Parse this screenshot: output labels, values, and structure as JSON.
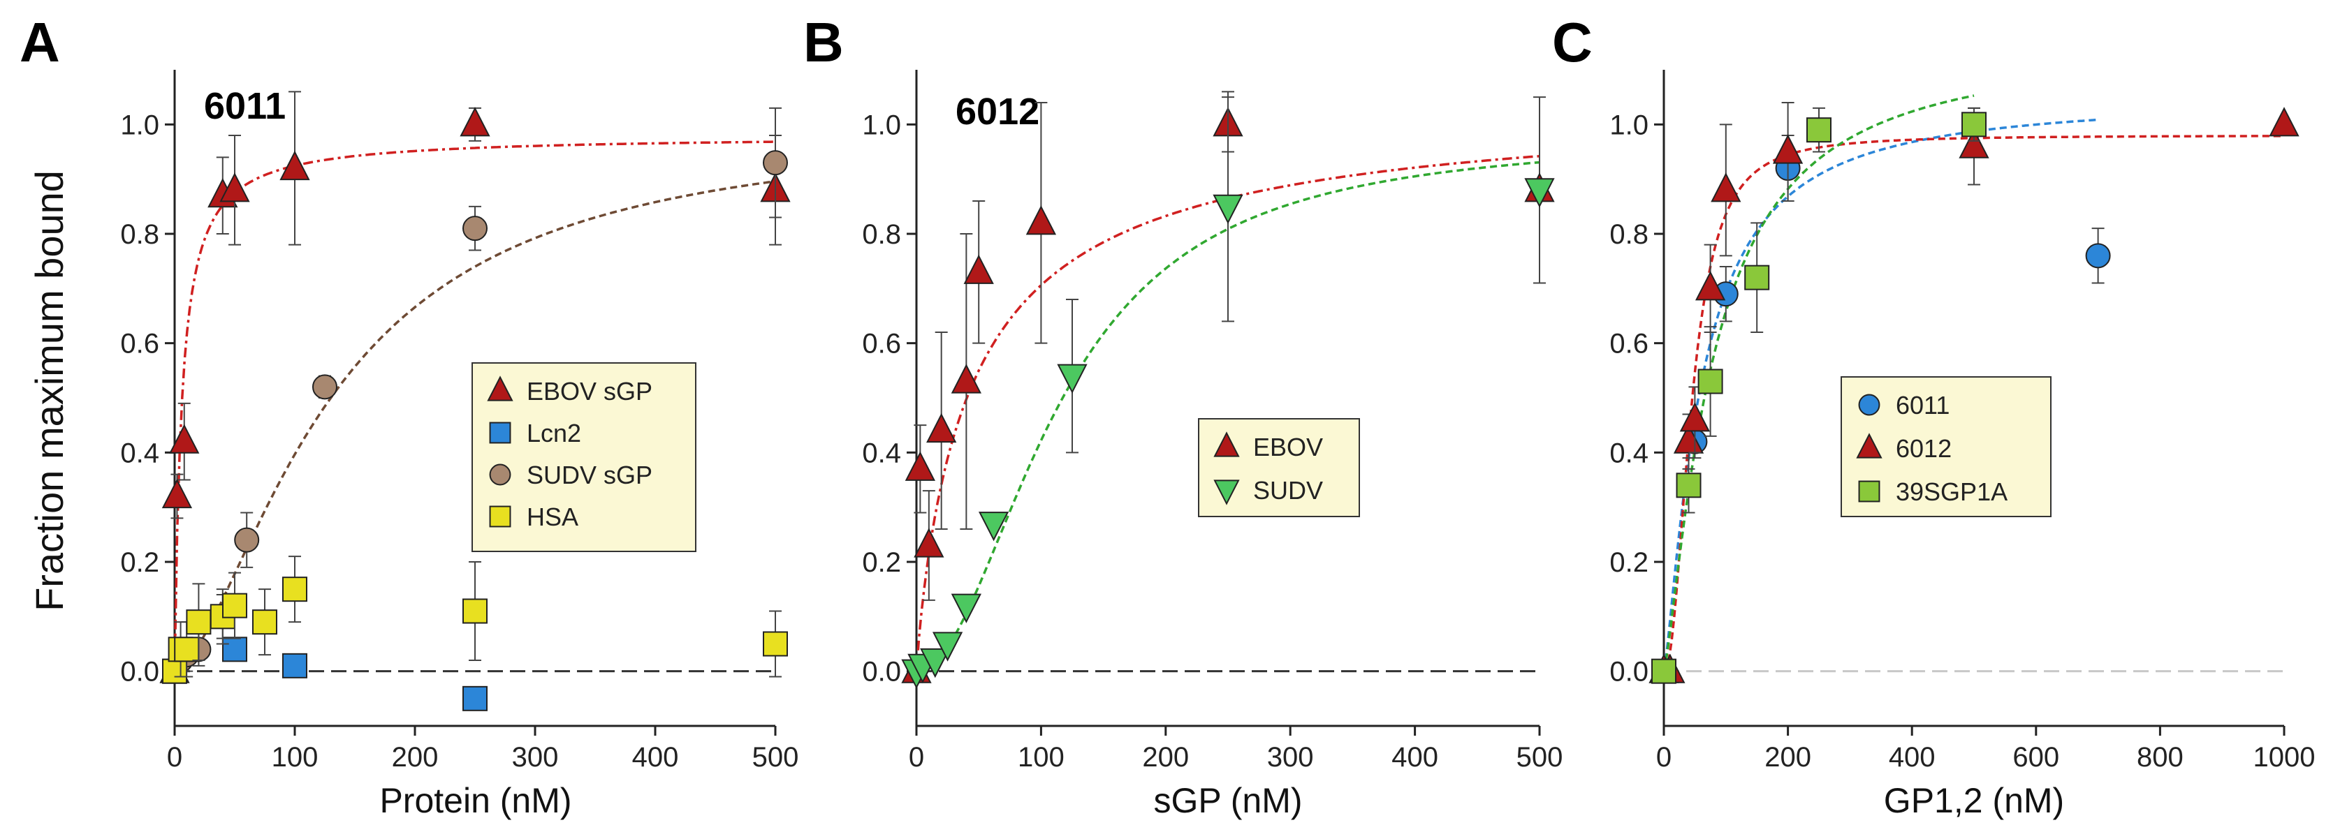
{
  "figure": {
    "y_axis_label": "Fraction maximum bound",
    "colors": {
      "red": "#b01818",
      "red_line": "#d02020",
      "brown": "#a88870",
      "brown_line": "#6e4a34",
      "blue": "#2c86d8",
      "blue_line": "#2c86d8",
      "yellow": "#e8e020",
      "green_down": "#4cc860",
      "green_line": "#30a830",
      "green_square": "#8ac83a",
      "legend_bg": "#fbf8d4"
    }
  },
  "chart_data": [
    {
      "type": "scatter",
      "panel_label": "A",
      "title": "6011",
      "xlabel": "Protein (nM)",
      "ylabel": "Fraction maximum bound",
      "xlim": [
        0,
        500
      ],
      "ylim": [
        -0.1,
        1.1
      ],
      "xticks": [
        0,
        100,
        200,
        300,
        400,
        500
      ],
      "xtick_labels": [
        "0",
        "100",
        "200",
        "300",
        "400",
        "500"
      ],
      "yticks": [
        0,
        0.2,
        0.4,
        0.6,
        0.8,
        1.0
      ],
      "ytick_labels": [
        "0.0",
        "0.2",
        "0.4",
        "0.6",
        "0.8",
        "1.0"
      ],
      "zero_line": true,
      "legend": {
        "position": "center-right",
        "entries": [
          "EBOV sGP",
          "Lcn2",
          "SUDV sGP",
          "HSA"
        ]
      },
      "fits": [
        {
          "series": "EBOV sGP",
          "model": "hill",
          "max": 0.98,
          "kd": 6,
          "n": 1,
          "color_key": "red_line",
          "dash": "14 6 4 6"
        },
        {
          "series": "SUDV sGP",
          "model": "hill",
          "max": 1.0,
          "kd": 130,
          "n": 1.6,
          "color_key": "brown_line",
          "dash": "10 6"
        }
      ],
      "series": [
        {
          "name": "EBOV sGP",
          "marker": "triangle-up",
          "color_key": "red",
          "x": [
            0,
            2,
            8,
            40,
            50,
            100,
            250,
            500
          ],
          "y": [
            0.0,
            0.32,
            0.42,
            0.87,
            0.88,
            0.92,
            1.0,
            0.88
          ],
          "err": [
            0,
            0.04,
            0.07,
            0.07,
            0.1,
            0.14,
            0.03,
            0.1
          ]
        },
        {
          "name": "Lcn2",
          "marker": "square",
          "color_key": "blue",
          "x": [
            0,
            50,
            100,
            250
          ],
          "y": [
            0.0,
            0.04,
            0.01,
            -0.05
          ],
          "err": [
            0,
            0,
            0,
            0
          ]
        },
        {
          "name": "SUDV sGP",
          "marker": "circle",
          "color_key": "brown",
          "x": [
            0,
            5,
            10,
            20,
            40,
            60,
            125,
            250,
            500
          ],
          "y": [
            0.0,
            0.02,
            0.03,
            0.04,
            0.1,
            0.24,
            0.52,
            0.81,
            0.93
          ],
          "err": [
            0,
            0.02,
            0.03,
            0.03,
            0.04,
            0.05,
            0.02,
            0.04,
            0.1
          ]
        },
        {
          "name": "HSA",
          "marker": "square",
          "color_key": "yellow",
          "x": [
            0,
            5,
            10,
            20,
            40,
            50,
            75,
            100,
            250,
            500
          ],
          "y": [
            0.0,
            0.04,
            0.04,
            0.09,
            0.1,
            0.12,
            0.09,
            0.15,
            0.11,
            0.05
          ],
          "err": [
            0.02,
            0.05,
            0.05,
            0.07,
            0.05,
            0.06,
            0.06,
            0.06,
            0.09,
            0.06
          ]
        }
      ]
    },
    {
      "type": "scatter",
      "panel_label": "B",
      "title": "6012",
      "xlabel": "sGP (nM)",
      "ylabel": "",
      "xlim": [
        0,
        500
      ],
      "ylim": [
        -0.1,
        1.1
      ],
      "xticks": [
        0,
        100,
        200,
        300,
        400,
        500
      ],
      "xtick_labels": [
        "0",
        "100",
        "200",
        "300",
        "400",
        "500"
      ],
      "yticks": [
        0,
        0.2,
        0.4,
        0.6,
        0.8,
        1.0
      ],
      "ytick_labels": [
        "0.0",
        "0.2",
        "0.4",
        "0.6",
        "0.8",
        "1.0"
      ],
      "zero_line": true,
      "legend": {
        "position": "center-right",
        "entries": [
          "EBOV",
          "SUDV"
        ]
      },
      "fits": [
        {
          "series": "EBOV",
          "model": "hill",
          "max": 1.05,
          "kd": 45,
          "n": 0.9,
          "color_key": "red_line",
          "dash": "14 6 4 6"
        },
        {
          "series": "SUDV",
          "model": "hill",
          "max": 0.98,
          "kd": 115,
          "n": 2.0,
          "color_key": "green_line",
          "dash": "10 6"
        }
      ],
      "series": [
        {
          "name": "EBOV",
          "marker": "triangle-up",
          "color_key": "red",
          "x": [
            0,
            3,
            10,
            20,
            40,
            50,
            100,
            250,
            500
          ],
          "y": [
            0.0,
            0.37,
            0.23,
            0.44,
            0.53,
            0.73,
            0.82,
            1.0,
            0.88
          ],
          "err": [
            0,
            0.08,
            0.1,
            0.18,
            0.27,
            0.13,
            0.22,
            0.05,
            0.17
          ]
        },
        {
          "name": "SUDV",
          "marker": "triangle-down",
          "color_key": "green_down",
          "x": [
            0,
            5,
            15,
            25,
            40,
            62,
            125,
            250,
            500
          ],
          "y": [
            0.0,
            0.01,
            0.02,
            0.05,
            0.12,
            0.27,
            0.54,
            0.85,
            0.88
          ],
          "err": [
            0,
            0,
            0,
            0,
            0,
            0,
            0.14,
            0.21,
            0
          ]
        }
      ]
    },
    {
      "type": "scatter",
      "panel_label": "C",
      "title": "",
      "xlabel": "GP1,2 (nM)",
      "ylabel": "",
      "xlim": [
        0,
        1000
      ],
      "ylim": [
        -0.1,
        1.1
      ],
      "xticks": [
        0,
        200,
        400,
        600,
        800,
        1000
      ],
      "xtick_labels": [
        "0",
        "200",
        "400",
        "600",
        "800",
        "1000"
      ],
      "yticks": [
        0,
        0.2,
        0.4,
        0.6,
        0.8,
        1.0
      ],
      "ytick_labels": [
        "0.0",
        "0.2",
        "0.4",
        "0.6",
        "0.8",
        "1.0"
      ],
      "zero_line": true,
      "legend": {
        "position": "center-right",
        "entries": [
          "6011",
          "6012",
          "39SGP1A"
        ]
      },
      "fits": [
        {
          "series": "6011",
          "model": "hill",
          "max": 1.05,
          "kd": 60,
          "n": 1.3,
          "color_key": "blue_line",
          "dash": "10 6",
          "xmax": 700
        },
        {
          "series": "6012",
          "model": "hill",
          "max": 0.98,
          "kd": 45,
          "n": 2.2,
          "color_key": "red_line",
          "dash": "10 6"
        },
        {
          "series": "39SGP1A",
          "model": "hill",
          "max": 1.15,
          "kd": 80,
          "n": 1.3,
          "color_key": "green_line",
          "dash": "10 6",
          "xmax": 500
        }
      ],
      "series": [
        {
          "name": "6011",
          "marker": "circle",
          "color_key": "blue",
          "x": [
            50,
            100,
            200,
            700
          ],
          "y": [
            0.42,
            0.69,
            0.92,
            0.76
          ],
          "err": [
            0.03,
            0.05,
            0.06,
            0.05
          ]
        },
        {
          "name": "6012",
          "marker": "triangle-up",
          "color_key": "red",
          "x": [
            0,
            10,
            40,
            50,
            75,
            100,
            200,
            500,
            1000
          ],
          "y": [
            0.0,
            0.0,
            0.42,
            0.46,
            0.7,
            0.88,
            0.95,
            0.96,
            1.0
          ],
          "err": [
            0,
            0,
            0.05,
            0.06,
            0.08,
            0.12,
            0.09,
            0.07,
            0
          ]
        },
        {
          "name": "39SGP1A",
          "marker": "square",
          "color_key": "green_square",
          "x": [
            0,
            40,
            75,
            150,
            250,
            500
          ],
          "y": [
            0.0,
            0.34,
            0.53,
            0.72,
            0.99,
            1.0
          ],
          "err": [
            0,
            0.05,
            0.1,
            0.1,
            0.04,
            0.03
          ]
        }
      ]
    }
  ]
}
